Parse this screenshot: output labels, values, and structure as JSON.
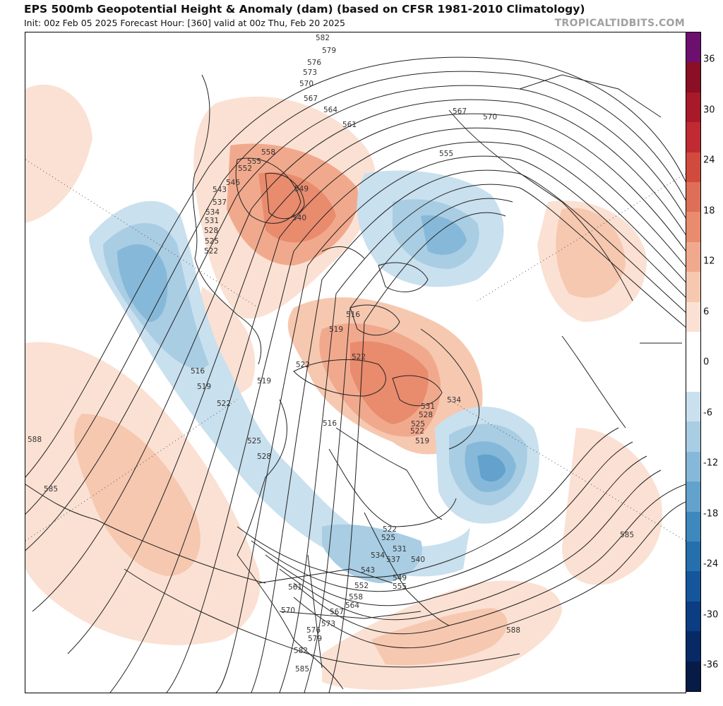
{
  "header": {
    "title": "EPS 500mb Geopotential Height & Anomaly (dam) (based on CFSR 1981-2010 Climatology)",
    "subtitle": "Init: 00z Feb 05 2025   Forecast Hour: [360]   valid at 00z Thu, Feb 20 2025",
    "brand": "TROPICALTIDBITS.COM"
  },
  "colorbar": {
    "labels": [
      "36",
      "30",
      "24",
      "18",
      "12",
      "6",
      "0",
      "-6",
      "-12",
      "-18",
      "-24",
      "-30",
      "-36"
    ],
    "colors": [
      "#6d0f6e",
      "#8a0e24",
      "#a81a2a",
      "#c02a32",
      "#d04b3e",
      "#de6e57",
      "#e98b6d",
      "#f1a98d",
      "#f6c8b0",
      "#fbe1d3",
      "#ffffff",
      "#ffffff",
      "#c9e0ee",
      "#a9cde3",
      "#86b9d9",
      "#62a2cc",
      "#3f88bd",
      "#266fad",
      "#15569a",
      "#0b3d82",
      "#072a66",
      "#061b46"
    ]
  },
  "contour_labels": [
    "582",
    "579",
    "576",
    "573",
    "570",
    "567",
    "564",
    "561",
    "558",
    "555",
    "552",
    "549",
    "546",
    "543",
    "540",
    "537",
    "534",
    "531",
    "528",
    "525",
    "522",
    "519",
    "516",
    "585",
    "588"
  ]
}
